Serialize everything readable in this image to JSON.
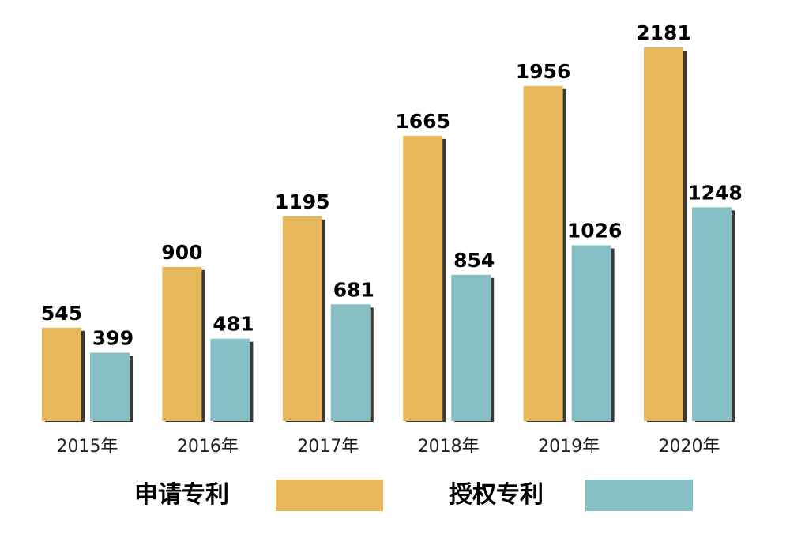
{
  "chart_data": {
    "type": "bar",
    "categories": [
      "2015年",
      "2016年",
      "2017年",
      "2018年",
      "2019年",
      "2020年"
    ],
    "series": [
      {
        "name": "申请专利",
        "values": [
          545,
          900,
          1195,
          1665,
          1956,
          2181
        ],
        "color": "#E8B95C"
      },
      {
        "name": "授权专利",
        "values": [
          399,
          481,
          681,
          854,
          1026,
          1248
        ],
        "color": "#86C0C5"
      }
    ],
    "ylim": [
      0,
      2181
    ],
    "grid": false,
    "data_labels": true,
    "legend_position": "bottom"
  }
}
